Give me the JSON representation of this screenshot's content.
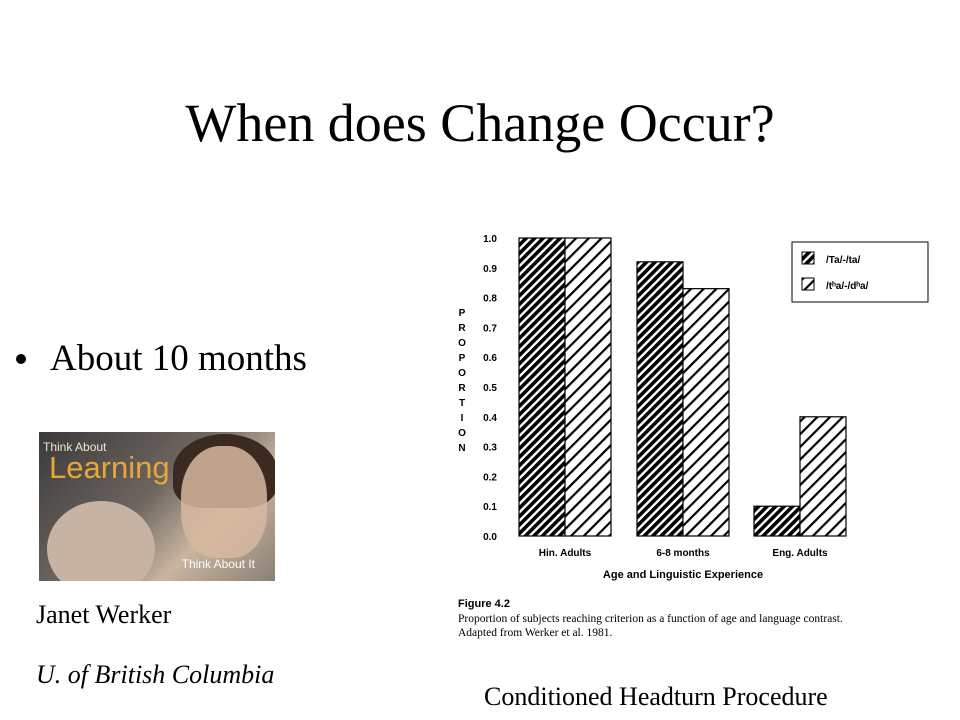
{
  "slide": {
    "title": "When does Change Occur?",
    "bullet": "About 10 months",
    "photo": {
      "think_about": "Think About",
      "learning": "Learning",
      "cover_text": "Think About It"
    },
    "name": "Janet Werker",
    "affiliation": "U. of British Columbia",
    "procedure": "Conditioned Headturn Procedure"
  },
  "figure": {
    "label": "Figure 4.2",
    "caption_line1": "Proportion of subjects reaching criterion as a function of age and language contrast.",
    "caption_line2": "Adapted from Werker et al. 1981."
  },
  "chart_data": {
    "type": "bar",
    "categories": [
      "Hin. Adults",
      "6-8 months",
      "Eng. Adults"
    ],
    "series": [
      {
        "name": "/Ta/-/ta/",
        "values": [
          1.0,
          0.92,
          0.1
        ]
      },
      {
        "name": "/tʰa/-/dʰa/",
        "values": [
          1.0,
          0.83,
          0.4
        ]
      }
    ],
    "xlabel": "Age and Linguistic Experience",
    "ylabel": "PROPORTION",
    "ylim": [
      0,
      1.0
    ],
    "yticks": [
      "0.0",
      "0.1",
      "0.2",
      "0.3",
      "0.4",
      "0.5",
      "0.6",
      "0.7",
      "0.8",
      "0.9",
      "1.0"
    ],
    "legend_position": "top-right",
    "grid": false,
    "colors": {
      "bars": "#000000",
      "background": "#ffffff"
    }
  }
}
